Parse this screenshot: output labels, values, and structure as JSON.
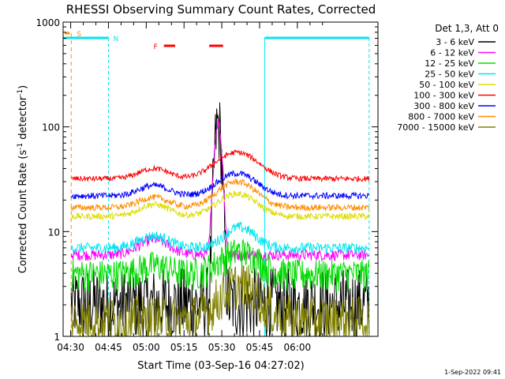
{
  "chart_data": {
    "type": "line",
    "title": "RHESSI Observing Summary Count Rates, Corrected",
    "xlabel": "Start Time (03-Sep-16 04:27:02)",
    "ylabel_main": "Corrected Count Rate (s",
    "ylabel_sup1": "-1",
    "ylabel_mid": " detector",
    "ylabel_sup2": "-1",
    "ylabel_end": ")",
    "yscale": "log",
    "xlim_min": [
      0,
      125
    ],
    "ylim": [
      1,
      1000
    ],
    "x_ticks": [
      {
        "min": 3,
        "label": "04:30"
      },
      {
        "min": 18,
        "label": "04:45"
      },
      {
        "min": 33,
        "label": "05:00"
      },
      {
        "min": 48,
        "label": "05:15"
      },
      {
        "min": 63,
        "label": "05:30"
      },
      {
        "min": 78,
        "label": "05:45"
      },
      {
        "min": 93,
        "label": "06:00"
      }
    ],
    "y_ticks": [
      {
        "value": 1,
        "label": "1"
      },
      {
        "value": 10,
        "label": "10"
      },
      {
        "value": 100,
        "label": "100"
      },
      {
        "value": 1000,
        "label": "1000"
      }
    ],
    "legend_header": "Det 1,3, Att 0",
    "timestamp": "1-Sep-2022 09:41",
    "series": [
      {
        "name": "3 - 6 keV",
        "color": "#000000",
        "base": 2.2,
        "flare_peak": 115,
        "flare_t": 61.5,
        "flare_w": 1.6,
        "noise": 0.9,
        "bump": 0
      },
      {
        "name": "6 - 12 keV",
        "color": "#ff00ff",
        "base": 6.0,
        "flare_peak": 110,
        "flare_t": 61.5,
        "flare_w": 1.8,
        "noise": 0.12,
        "bump": 0.4
      },
      {
        "name": "12 - 25 keV",
        "color": "#00dd00",
        "base": 4.0,
        "flare_peak": 6.5,
        "flare_t": 70,
        "flare_w": 10,
        "noise": 0.35,
        "bump": 0.2
      },
      {
        "name": "25 - 50 keV",
        "color": "#00e5ee",
        "base": 7.0,
        "flare_peak": 11,
        "flare_t": 70,
        "flare_w": 8,
        "noise": 0.12,
        "bump": 0.3
      },
      {
        "name": "50 - 100 keV",
        "color": "#dddd00",
        "base": 14.0,
        "flare_peak": 23,
        "flare_t": 69,
        "flare_w": 10,
        "noise": 0.07,
        "bump": 0.3
      },
      {
        "name": "100 - 300 keV",
        "color": "#ff0000",
        "base": 32.0,
        "flare_peak": 57,
        "flare_t": 69,
        "flare_w": 11,
        "noise": 0.06,
        "bump": 0.25
      },
      {
        "name": "300 - 800 keV",
        "color": "#0000ff",
        "base": 22.0,
        "flare_peak": 36,
        "flare_t": 69,
        "flare_w": 10,
        "noise": 0.07,
        "bump": 0.25
      },
      {
        "name": "800 - 7000 keV",
        "color": "#ff8c00",
        "base": 17.0,
        "flare_peak": 30,
        "flare_t": 69,
        "flare_w": 10,
        "noise": 0.07,
        "bump": 0.25
      },
      {
        "name": "7000 - 15000 keV",
        "color": "#808000",
        "base": 1.5,
        "flare_peak": 3.2,
        "flare_t": 70,
        "flare_w": 10,
        "noise": 0.6,
        "bump": 0
      }
    ],
    "annotations": {
      "saa_label": "S",
      "night_label": "N",
      "flare_label": "F",
      "night_intervals_min": [
        [
          0,
          18
        ],
        [
          80,
          122
        ]
      ],
      "flare_intervals_min": [
        [
          40,
          44.5
        ],
        [
          58,
          63.5
        ]
      ],
      "saa_min": 3.2,
      "night_end_markers_min": [
        18,
        80,
        121.5
      ],
      "data_start_min": 3.2,
      "data_end_min": 121.5
    }
  }
}
